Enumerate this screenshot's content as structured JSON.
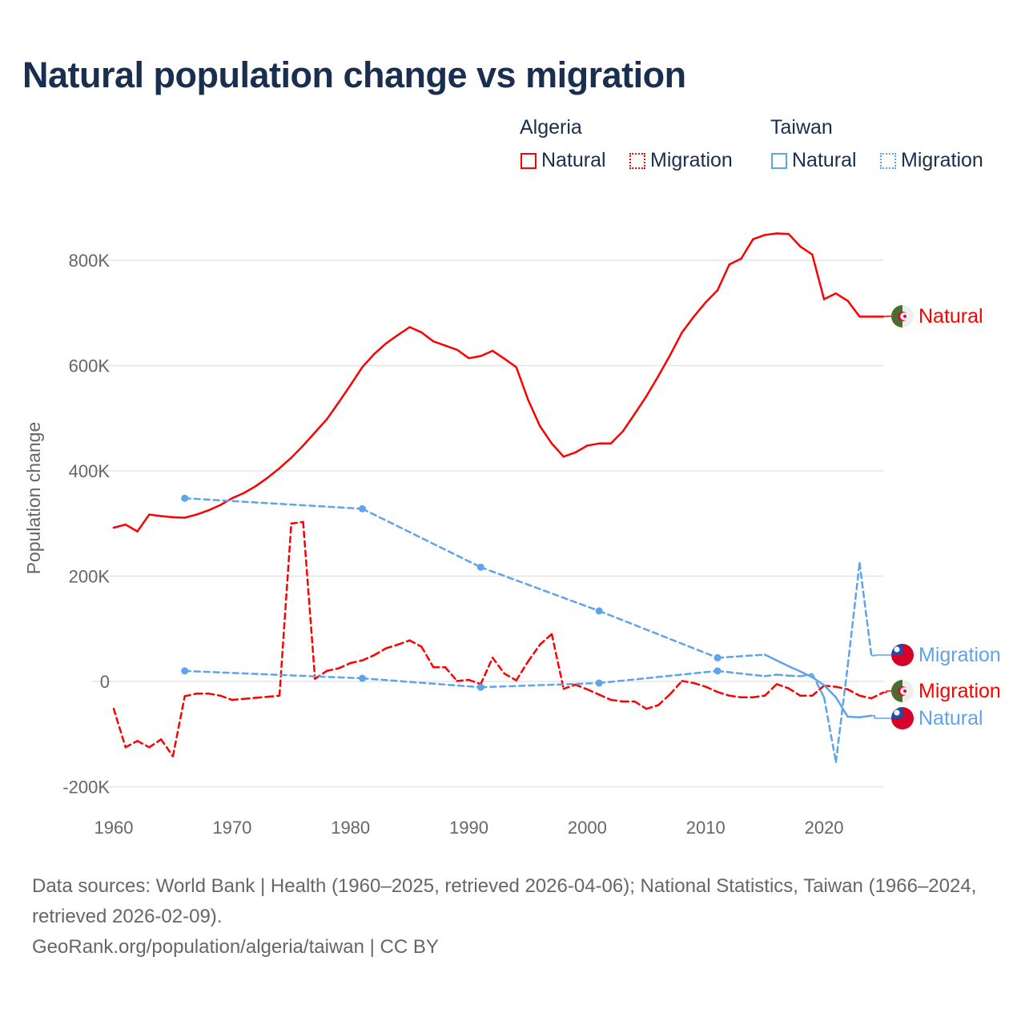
{
  "title": "Natural population change vs migration",
  "legend": {
    "groups": [
      {
        "name": "Algeria",
        "color": "#ff0000",
        "items": [
          "Natural",
          "Migration"
        ]
      },
      {
        "name": "Taiwan",
        "color": "#5ea4ea",
        "items": [
          "Natural",
          "Migration"
        ]
      }
    ]
  },
  "footer": {
    "sources": "Data sources: World Bank | Health (1960–2025, retrieved 2026-04-06); National Statistics, Taiwan (1966–2024, retrieved 2026-02-09).",
    "credit": "GeoRank.org/population/algeria/taiwan | CC BY"
  },
  "chart_data": {
    "type": "line",
    "title": "Natural population change vs migration",
    "xlabel": "",
    "ylabel": "Population change",
    "xlim": [
      1960,
      2025
    ],
    "ylim": [
      -200000,
      900000
    ],
    "x_ticks": [
      1960,
      1970,
      1980,
      1990,
      2000,
      2010,
      2020
    ],
    "x_tick_labels": [
      "1960",
      "1970",
      "1980",
      "1990",
      "2000",
      "2010",
      "2020"
    ],
    "y_ticks": [
      -200000,
      0,
      200000,
      400000,
      600000,
      800000
    ],
    "y_tick_labels": [
      "-200K",
      "0",
      "200K",
      "400K",
      "600K",
      "800K"
    ],
    "grid": true,
    "legend_position": "top-right",
    "series": [
      {
        "name": "Algeria Natural",
        "country": "Algeria",
        "kind": "Natural",
        "end_label": "Natural",
        "color": "#ff0000",
        "style": "solid",
        "flag": "algeria",
        "x": [
          1960,
          1961,
          1962,
          1963,
          1964,
          1965,
          1966,
          1967,
          1968,
          1969,
          1970,
          1971,
          1972,
          1973,
          1974,
          1975,
          1976,
          1977,
          1978,
          1979,
          1980,
          1981,
          1982,
          1983,
          1984,
          1985,
          1986,
          1987,
          1988,
          1989,
          1990,
          1991,
          1992,
          1993,
          1994,
          1995,
          1996,
          1997,
          1998,
          1999,
          2000,
          2001,
          2002,
          2003,
          2004,
          2005,
          2006,
          2007,
          2008,
          2009,
          2010,
          2011,
          2012,
          2013,
          2014,
          2015,
          2016,
          2017,
          2018,
          2019,
          2020,
          2021,
          2022,
          2023,
          2024,
          2025
        ],
        "values": [
          292000,
          298000,
          285000,
          317000,
          314000,
          312000,
          311000,
          317000,
          325000,
          335000,
          348000,
          358000,
          371000,
          387000,
          405000,
          425000,
          448000,
          473000,
          498000,
          530000,
          563000,
          597000,
          622000,
          642000,
          658000,
          673000,
          663000,
          646000,
          638000,
          630000,
          614000,
          618000,
          628000,
          613000,
          597000,
          535000,
          485000,
          452000,
          427000,
          435000,
          448000,
          452000,
          452000,
          475000,
          508000,
          542000,
          580000,
          620000,
          663000,
          693000,
          720000,
          743000,
          792000,
          803000,
          840000,
          848000,
          851000,
          850000,
          826000,
          811000,
          726000,
          737000,
          723000,
          693000,
          693000,
          693000
        ]
      },
      {
        "name": "Algeria Migration",
        "country": "Algeria",
        "kind": "Migration",
        "end_label": "Migration",
        "color": "#ff0000",
        "style": "dashed",
        "flag": "algeria",
        "x": [
          1960,
          1961,
          1962,
          1963,
          1964,
          1965,
          1966,
          1967,
          1968,
          1969,
          1970,
          1971,
          1972,
          1973,
          1974,
          1975,
          1976,
          1977,
          1978,
          1979,
          1980,
          1981,
          1982,
          1983,
          1984,
          1985,
          1986,
          1987,
          1988,
          1989,
          1990,
          1991,
          1992,
          1993,
          1994,
          1995,
          1996,
          1997,
          1998,
          1999,
          2000,
          2001,
          2002,
          2003,
          2004,
          2005,
          2006,
          2007,
          2008,
          2009,
          2010,
          2011,
          2012,
          2013,
          2014,
          2015,
          2016,
          2017,
          2018,
          2019,
          2020,
          2021,
          2022,
          2023,
          2024,
          2025
        ],
        "values": [
          -52000,
          -125000,
          -113000,
          -125000,
          -110000,
          -142000,
          -28000,
          -23000,
          -23000,
          -27000,
          -35000,
          -33000,
          -31000,
          -29000,
          -27000,
          300000,
          303000,
          5000,
          20000,
          25000,
          35000,
          40000,
          50000,
          63000,
          70000,
          78000,
          66000,
          27000,
          27000,
          1000,
          3000,
          -5000,
          45000,
          15000,
          2000,
          38000,
          70000,
          90000,
          -14000,
          -6000,
          -15000,
          -25000,
          -35000,
          -38000,
          -38000,
          -52000,
          -45000,
          -24000,
          1000,
          -3000,
          -10000,
          -20000,
          -27000,
          -30000,
          -30000,
          -27000,
          -5000,
          -13000,
          -27000,
          -27000,
          -8000,
          -10000,
          -15000,
          -27000,
          -32000,
          -21000
        ]
      },
      {
        "name": "Taiwan Natural",
        "country": "Taiwan",
        "kind": "Natural",
        "end_label": "Natural",
        "color": "#5ea4ea",
        "style": "solid",
        "flag": "taiwan",
        "x": [
          1966,
          1981,
          1991,
          2001,
          2011,
          2015,
          2016,
          2017,
          2018,
          2019,
          2020,
          2021,
          2022,
          2023,
          2024
        ],
        "values": [
          348000,
          328000,
          217000,
          134000,
          45000,
          51000,
          40000,
          29000,
          19000,
          8000,
          -7000,
          -30000,
          -67000,
          -68000,
          -65000
        ]
      },
      {
        "name": "Taiwan Migration",
        "country": "Taiwan",
        "kind": "Migration",
        "end_label": "Migration",
        "color": "#5ea4ea",
        "style": "dashed",
        "flag": "taiwan",
        "x": [
          1966,
          1981,
          1991,
          2001,
          2011,
          2015,
          2016,
          2017,
          2018,
          2019,
          2020,
          2021,
          2022,
          2023,
          2024
        ],
        "values": [
          20000,
          6000,
          -11000,
          -3000,
          20000,
          10000,
          13000,
          11000,
          10000,
          14000,
          -30000,
          -153000,
          30000,
          225000,
          49000
        ]
      }
    ]
  }
}
